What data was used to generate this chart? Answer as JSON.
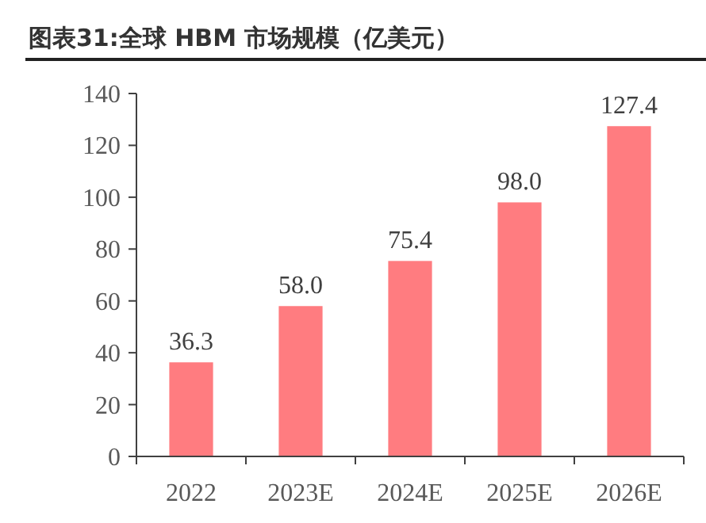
{
  "chart_data": {
    "type": "bar",
    "title": "图表31:全球 HBM 市场规模（亿美元）",
    "categories": [
      "2022",
      "2023E",
      "2024E",
      "2025E",
      "2026E"
    ],
    "values": [
      36.3,
      58.0,
      75.4,
      98.0,
      127.4
    ],
    "value_labels": [
      "36.3",
      "58.0",
      "75.4",
      "98.0",
      "127.4"
    ],
    "color": "#ff7c80",
    "ylim": [
      0,
      140
    ],
    "yticks": [
      0,
      20,
      40,
      60,
      80,
      100,
      120,
      140
    ],
    "grid": false
  }
}
